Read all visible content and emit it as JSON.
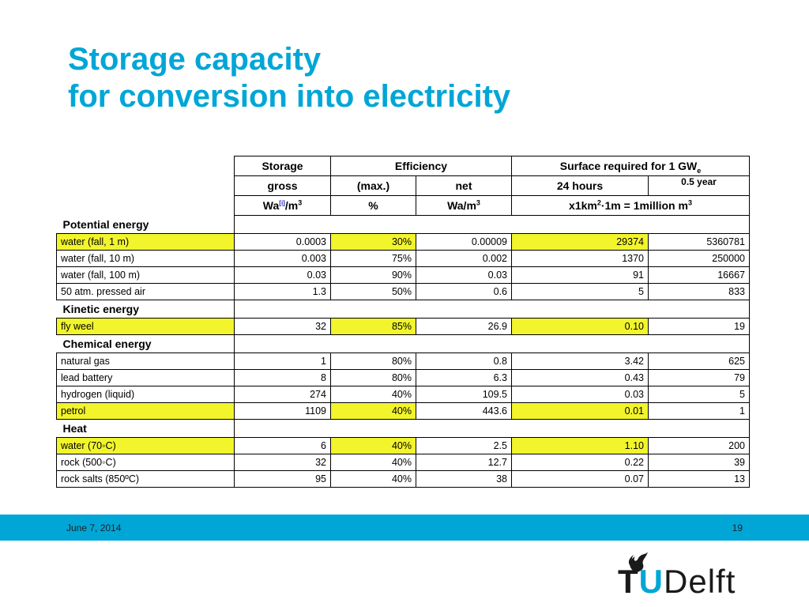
{
  "title": {
    "line1": "Storage capacity",
    "line2": "for conversion into electricity"
  },
  "table": {
    "header": {
      "storage": "Storage",
      "efficiency": "Efficiency",
      "surface": "Surface required for 1 GW",
      "surface_sub": "e",
      "gross": "gross",
      "max": "(max.)",
      "net": "net",
      "hours24": "24 hours",
      "half_year": "0.5 year",
      "unit_wa_pre": "Wa",
      "unit_wa_ref": "[i]",
      "unit_wa_post": "/m",
      "unit_cube": "3",
      "unit_percent": "%",
      "unit_net_pre": "Wa/m",
      "unit_surface_pre": "x1km",
      "unit_surface_sq": "2",
      "unit_surface_mid": "·1m = 1million m",
      "unit_surface_cube": "3"
    },
    "sections": [
      {
        "title": "Potential energy",
        "rows": [
          {
            "label": "water (fall, 1 m)",
            "gross": "0.0003",
            "max": "30%",
            "net": "0.00009",
            "h24": "29374",
            "half": "5360781",
            "highlight": true
          },
          {
            "label": "water (fall, 10 m)",
            "gross": "0.003",
            "max": "75%",
            "net": "0.002",
            "h24": "1370",
            "half": "250000",
            "highlight": false
          },
          {
            "label": "water (fall, 100 m)",
            "gross": "0.03",
            "max": "90%",
            "net": "0.03",
            "h24": "91",
            "half": "16667",
            "highlight": false
          },
          {
            "label": "50 atm. pressed air",
            "gross": "1.3",
            "max": "50%",
            "net": "0.6",
            "h24": "5",
            "half": "833",
            "highlight": false
          }
        ]
      },
      {
        "title": "Kinetic energy",
        "rows": [
          {
            "label": "fly weel",
            "gross": "32",
            "max": "85%",
            "net": "26.9",
            "h24": "0.10",
            "half": "19",
            "highlight": true
          }
        ]
      },
      {
        "title": "Chemical energy",
        "rows": [
          {
            "label": "natural gas",
            "gross": "1",
            "max": "80%",
            "net": "0.8",
            "h24": "3.42",
            "half": "625",
            "highlight": false
          },
          {
            "label": "lead battery",
            "gross": "8",
            "max": "80%",
            "net": "6.3",
            "h24": "0.43",
            "half": "79",
            "highlight": false
          },
          {
            "label": "hydrogen (liquid)",
            "gross": "274",
            "max": "40%",
            "net": "109.5",
            "h24": "0.03",
            "half": "5",
            "highlight": false
          },
          {
            "label": "petrol",
            "gross": "1109",
            "max": "40%",
            "net": "443.6",
            "h24": "0.01",
            "half": "1",
            "highlight": true
          }
        ]
      },
      {
        "title": "Heat",
        "rows": [
          {
            "label": "water (70◦C)",
            "gross": "6",
            "max": "40%",
            "net": "2.5",
            "h24": "1.10",
            "half": "200",
            "highlight": true
          },
          {
            "label": "rock (500◦C)",
            "gross": "32",
            "max": "40%",
            "net": "12.7",
            "h24": "0.22",
            "half": "39",
            "highlight": false
          },
          {
            "label": "rock salts (850ºC)",
            "gross": "95",
            "max": "40%",
            "net": "38",
            "h24": "0.07",
            "half": "13",
            "highlight": false
          }
        ]
      }
    ]
  },
  "footer": {
    "date": "June 7, 2014",
    "page": "19"
  },
  "logo": {
    "text_t": "T",
    "text_u": "U",
    "text_rest": "Delft",
    "flame_color": "#1a1a1a"
  },
  "colors": {
    "accent": "#00a6d6",
    "highlight": "#f2f52c"
  }
}
